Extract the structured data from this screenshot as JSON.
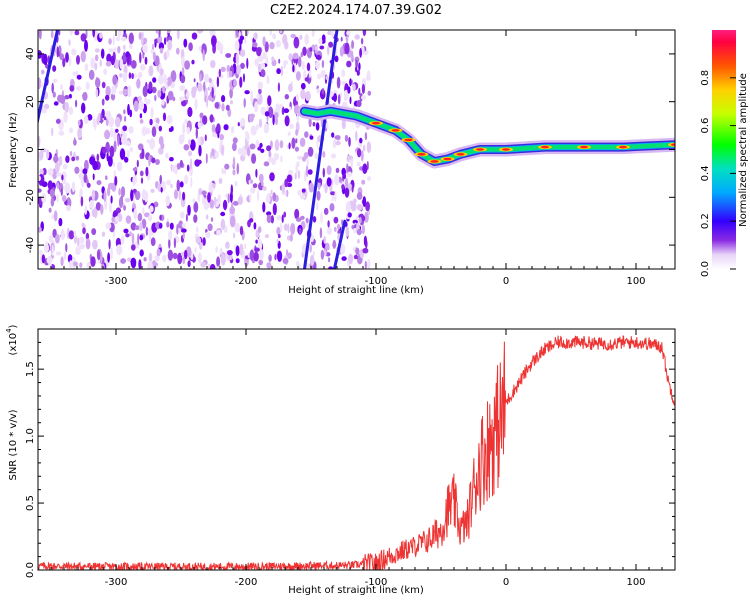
{
  "title": "C2E2.2024.174.07.39.G02",
  "chart_data": [
    {
      "type": "heatmap",
      "xlabel": "Height of straight line (km)",
      "ylabel": "Frequency (Hz)",
      "xlim": [
        -360,
        130
      ],
      "ylim": [
        -50,
        50
      ],
      "x_ticks": [
        -300,
        -200,
        -100,
        0,
        100
      ],
      "y_ticks": [
        -40,
        -20,
        0,
        20,
        40
      ],
      "colorbar": {
        "label": "Normalized spectral amplitude",
        "range": [
          0,
          1
        ],
        "ticks": [
          "0.0",
          "0.2",
          "0.4",
          "0.6",
          "0.8"
        ]
      },
      "noise_region_x": [
        -360,
        -105
      ],
      "diagonal_streaks": [
        {
          "x0": -362,
          "y0": 8,
          "x1": -345,
          "y1": 50
        },
        {
          "x0": -155,
          "y0": -50,
          "x1": -130,
          "y1": 50
        },
        {
          "x0": -132,
          "y0": -50,
          "x1": -124,
          "y1": -30
        }
      ],
      "signal_track": [
        {
          "x": -155,
          "y": 16
        },
        {
          "x": -145,
          "y": 15
        },
        {
          "x": -135,
          "y": 16
        },
        {
          "x": -115,
          "y": 14
        },
        {
          "x": -100,
          "y": 11
        },
        {
          "x": -85,
          "y": 8
        },
        {
          "x": -75,
          "y": 4
        },
        {
          "x": -65,
          "y": -2
        },
        {
          "x": -55,
          "y": -5
        },
        {
          "x": -45,
          "y": -4
        },
        {
          "x": -35,
          "y": -2
        },
        {
          "x": -20,
          "y": 0
        },
        {
          "x": 0,
          "y": 0
        },
        {
          "x": 30,
          "y": 1
        },
        {
          "x": 60,
          "y": 1
        },
        {
          "x": 90,
          "y": 1
        },
        {
          "x": 130,
          "y": 2
        }
      ]
    },
    {
      "type": "line",
      "xlabel": "Height of straight line (km)",
      "ylabel": "SNR (10 * v/v)",
      "y_multiplier": "(x10",
      "y_multiplier_exp": "4",
      "y_multiplier_close": ")",
      "xlim": [
        -360,
        130
      ],
      "ylim": [
        0,
        18000
      ],
      "x_ticks": [
        -300,
        -200,
        -100,
        0,
        100
      ],
      "y_ticks": [
        "0.0",
        "0.5",
        "1.0",
        "1.5"
      ],
      "y_tick_values": [
        0,
        5000,
        10000,
        15000
      ],
      "series": [
        {
          "color": "#ee3333",
          "x": [
            -360,
            -300,
            -200,
            -120,
            -100,
            -90,
            -80,
            -70,
            -60,
            -50,
            -45,
            -40,
            -35,
            -30,
            -25,
            -20,
            -15,
            -10,
            -5,
            0,
            10,
            20,
            30,
            40,
            50,
            60,
            70,
            80,
            90,
            100,
            110,
            120,
            125,
            130
          ],
          "y": [
            300,
            250,
            250,
            350,
            500,
            1000,
            1400,
            1800,
            2200,
            3000,
            4500,
            5000,
            3000,
            3500,
            6000,
            8000,
            9000,
            10000,
            11000,
            12500,
            14000,
            15500,
            16500,
            17000,
            17000,
            17000,
            16900,
            16900,
            17000,
            17000,
            16900,
            16700,
            14000,
            12500
          ]
        }
      ]
    }
  ]
}
